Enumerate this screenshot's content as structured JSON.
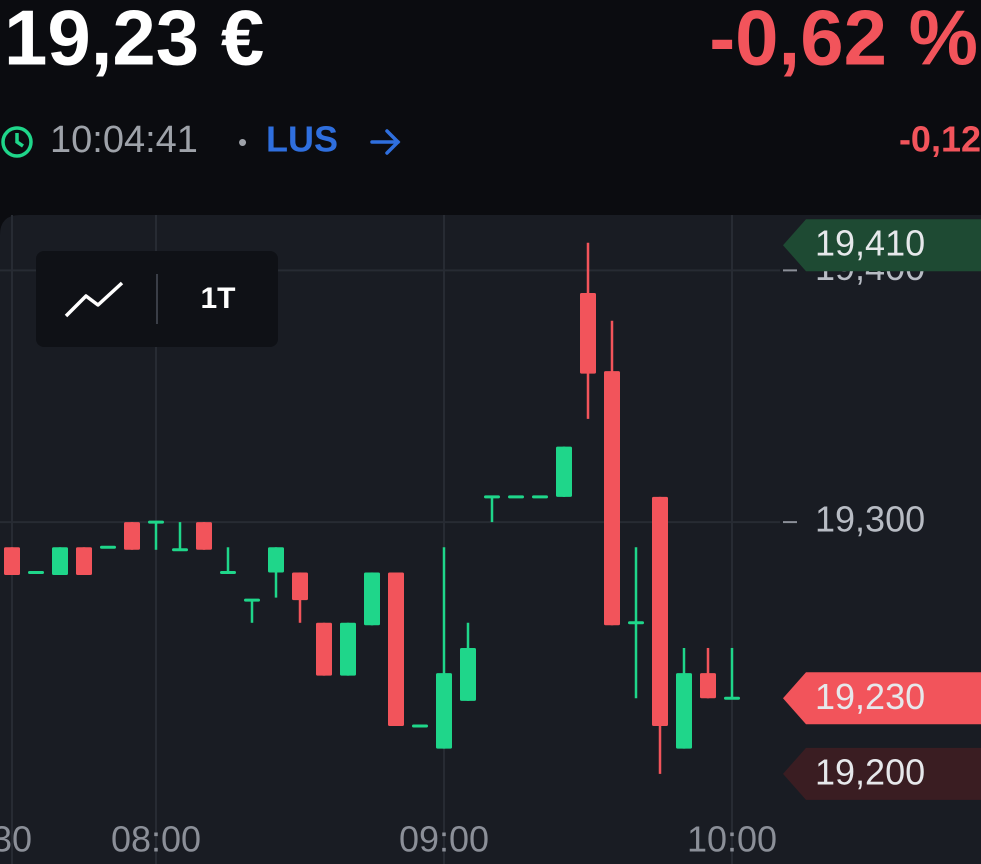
{
  "header": {
    "price": "19,23 €",
    "change_pct": "-0,62 %",
    "time": "10:04:41",
    "separator": "•",
    "exchange": "LUS",
    "change_abs": "-0,12"
  },
  "chart_data": {
    "type": "candlestick",
    "toolbar_label": "1T",
    "categories": [
      "30",
      null,
      null,
      null,
      null,
      null,
      "08:00",
      null,
      null,
      null,
      null,
      null,
      null,
      null,
      null,
      null,
      null,
      null,
      "09:00",
      null,
      null,
      null,
      null,
      null,
      null,
      null,
      null,
      null,
      null,
      null,
      "10:00"
    ],
    "open": [
      19.29,
      19.28,
      19.279,
      19.29,
      19.29,
      19.3,
      19.3,
      19.289,
      19.3,
      19.28,
      19.269,
      19.28,
      19.28,
      19.26,
      19.239,
      19.259,
      19.28,
      19.219,
      19.21,
      19.229,
      19.31,
      19.31,
      19.31,
      19.31,
      19.391,
      19.36,
      19.26,
      19.31,
      19.21,
      19.24,
      19.23
    ],
    "high": [
      19.29,
      19.28,
      19.29,
      19.29,
      19.29,
      19.3,
      19.3,
      19.3,
      19.3,
      19.29,
      19.269,
      19.29,
      19.28,
      19.26,
      19.26,
      19.28,
      19.28,
      19.219,
      19.29,
      19.26,
      19.31,
      19.31,
      19.31,
      19.33,
      19.411,
      19.38,
      19.29,
      19.31,
      19.25,
      19.25,
      19.25
    ],
    "low": [
      19.279,
      19.28,
      19.279,
      19.279,
      19.29,
      19.289,
      19.289,
      19.289,
      19.289,
      19.28,
      19.26,
      19.27,
      19.26,
      19.239,
      19.239,
      19.259,
      19.219,
      19.219,
      19.21,
      19.229,
      19.3,
      19.31,
      19.31,
      19.31,
      19.341,
      19.259,
      19.23,
      19.2,
      19.21,
      19.23,
      19.23
    ],
    "close": [
      19.279,
      19.28,
      19.29,
      19.279,
      19.29,
      19.289,
      19.3,
      19.289,
      19.289,
      19.28,
      19.269,
      19.29,
      19.269,
      19.239,
      19.26,
      19.28,
      19.219,
      19.219,
      19.24,
      19.25,
      19.31,
      19.31,
      19.31,
      19.33,
      19.359,
      19.259,
      19.26,
      19.219,
      19.24,
      19.23,
      19.23
    ],
    "up_color": "#1fd68a",
    "down_color": "#f2545b",
    "ylim": [
      19.19,
      19.422
    ],
    "yticks": [
      {
        "value": 19.3,
        "label": "19,300"
      },
      {
        "value": 19.4,
        "label": "19,400"
      }
    ],
    "grid": true,
    "badges": [
      {
        "label": "19,410",
        "value": 19.41,
        "color": "#1e4a33"
      },
      {
        "label": "19,230",
        "value": 19.23,
        "color": "#f2545b"
      },
      {
        "label": "19,200",
        "value": 19.2,
        "color": "#3a1d22"
      }
    ]
  }
}
